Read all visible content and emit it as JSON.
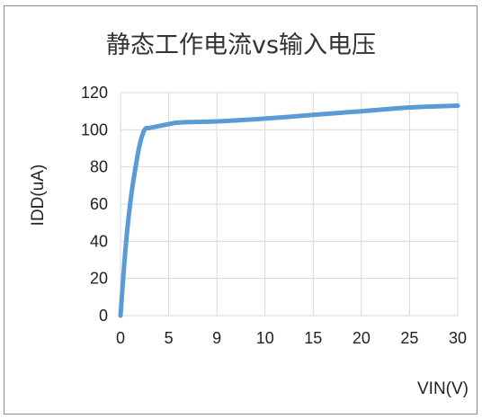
{
  "chart_data": {
    "type": "line",
    "title": "静态工作电流vs输入电压",
    "xlabel": "VIN(V)",
    "ylabel": "IDD(uA)",
    "categories": [
      "0",
      "5",
      "9",
      "10",
      "15",
      "20",
      "25",
      "30"
    ],
    "ylim": [
      0,
      120
    ],
    "yticks": [
      "0",
      "20",
      "40",
      "60",
      "80",
      "100",
      "120"
    ],
    "grid": true,
    "legend": "none",
    "series": [
      {
        "points": [
          [
            "0",
            0
          ],
          [
            "0.5",
            35
          ],
          [
            "1",
            60
          ],
          [
            "1.5",
            78
          ],
          [
            "2",
            92
          ],
          [
            "2.5",
            100
          ],
          [
            "3",
            101
          ],
          [
            "4",
            102
          ],
          [
            "5",
            103
          ],
          [
            "6",
            104
          ],
          [
            "9",
            104.5
          ],
          [
            "10",
            106
          ],
          [
            "15",
            108
          ],
          [
            "20",
            110
          ],
          [
            "25",
            112
          ],
          [
            "30",
            113
          ]
        ],
        "color": "#5b9bd5"
      }
    ]
  }
}
